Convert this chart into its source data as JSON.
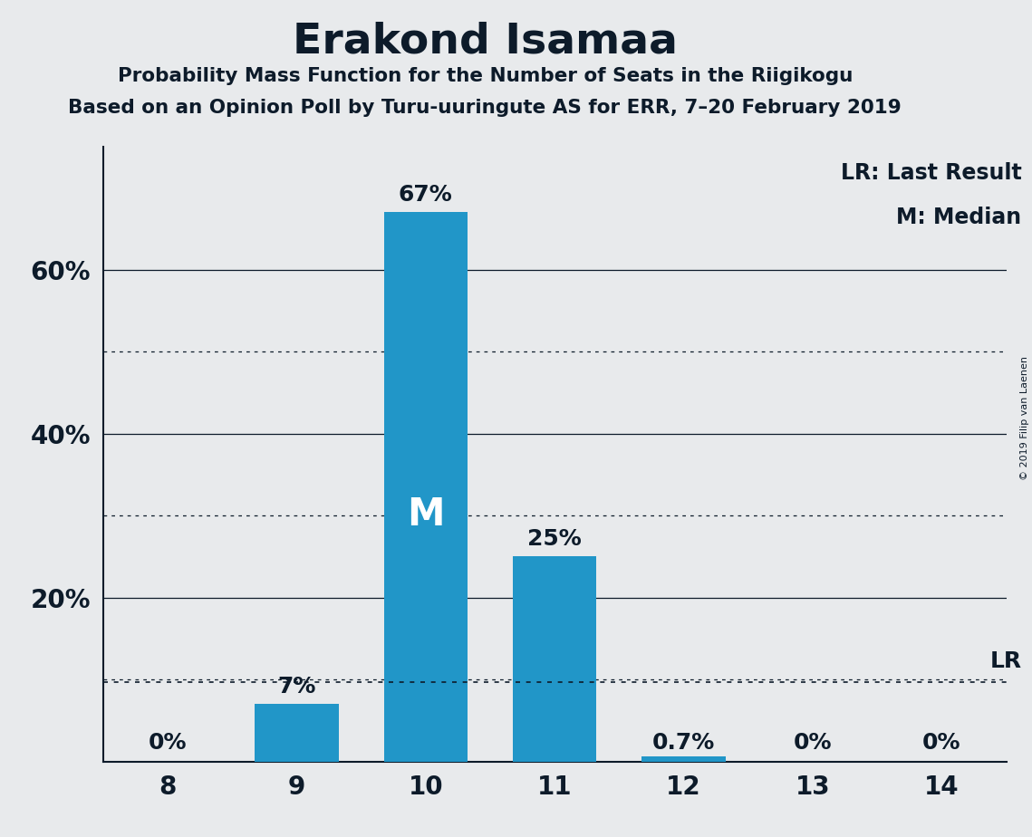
{
  "title": "Erakond Isamaa",
  "subtitle1": "Probability Mass Function for the Number of Seats in the Riigikogu",
  "subtitle2": "Based on an Opinion Poll by Turu-uuringute AS for ERR, 7–20 February 2019",
  "copyright": "© 2019 Filip van Laenen",
  "categories": [
    8,
    9,
    10,
    11,
    12,
    13,
    14
  ],
  "values": [
    0.0,
    7.0,
    67.0,
    25.0,
    0.7,
    0.0,
    0.0
  ],
  "bar_color": "#2196c8",
  "background_color": "#e8eaec",
  "text_color": "#0d1b2a",
  "median_seat": 10,
  "last_result_pct": 9.7,
  "ylabel_ticks": [
    20,
    40,
    60
  ],
  "dotted_lines": [
    10,
    30,
    50
  ],
  "solid_lines": [
    20,
    40,
    60
  ],
  "ylim": [
    0,
    75
  ],
  "legend_lr": "LR: Last Result",
  "legend_m": "M: Median",
  "bar_labels": [
    "0%",
    "7%",
    "67%",
    "25%",
    "0.7%",
    "0%",
    "0%"
  ]
}
